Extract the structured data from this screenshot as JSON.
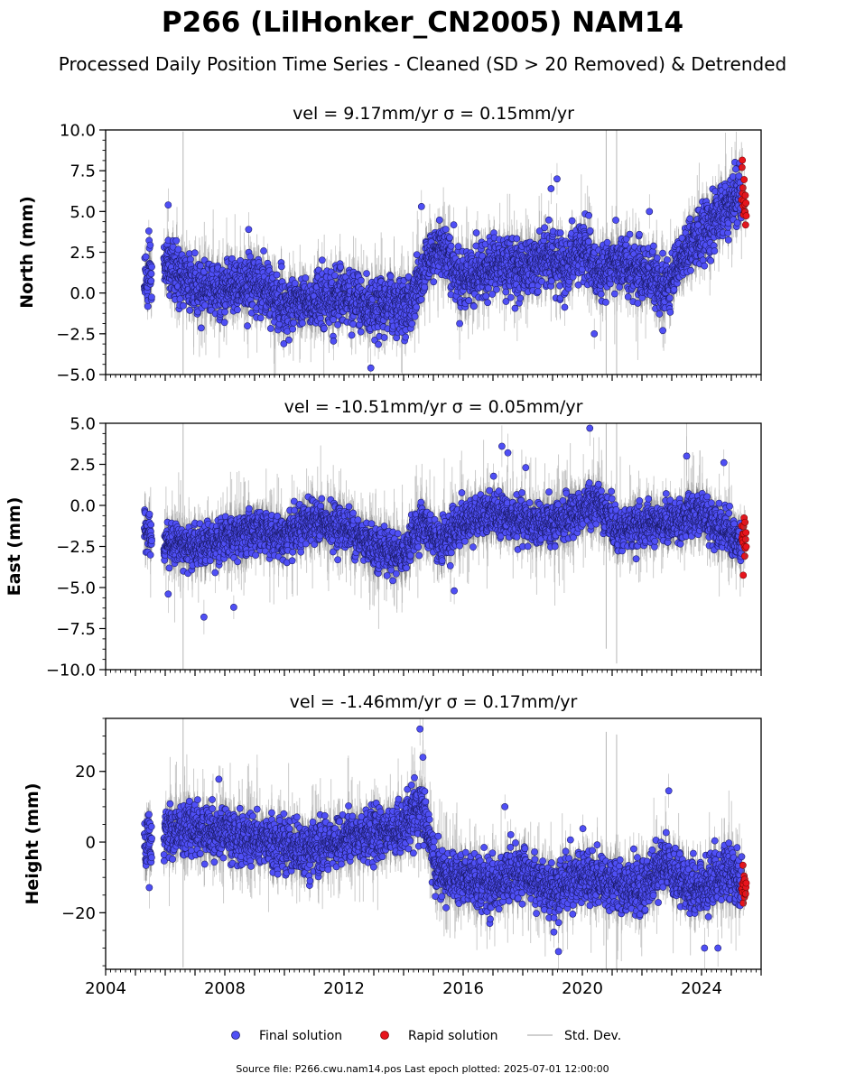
{
  "page": {
    "title": "P266 (LilHonker_CN2005) NAM14",
    "subtitle": "Processed Daily Position Time Series - Cleaned (SD > 20 Removed) & Detrended",
    "footer": "Source file: P266.cwu.nam14.pos  Last epoch plotted: 2025-07-01 12:00:00"
  },
  "legend": {
    "final": "Final solution",
    "rapid": "Rapid solution",
    "std": "Std. Dev."
  },
  "colors": {
    "final_fill": "#4f4ff5",
    "final_edge": "#1a1a66",
    "rapid_fill": "#e8141c",
    "rapid_edge": "#7a0000",
    "std_dev": "#b5b5b5",
    "std_dev_dense": "#5a5a5a"
  },
  "chart_data": [
    {
      "type": "scatter",
      "title": "vel = 9.17mm/yr   σ = 0.15mm/yr",
      "ylabel": "North (mm)",
      "xlim": [
        2004,
        2026
      ],
      "ylim": [
        -5,
        10
      ],
      "yticks": [
        -5,
        -2.5,
        0,
        2.5,
        5,
        7.5,
        10
      ],
      "ytick_labels": [
        "−5.0",
        "−2.5",
        "0.0",
        "2.5",
        "5.0",
        "7.5",
        "10.0"
      ],
      "data_start": 2005.3,
      "data_end": 2025.35,
      "rapid_start": 2025.35,
      "rapid_end": 2025.5,
      "series": [
        {
          "role": "final",
          "trend": [
            [
              2005.3,
              0.5
            ],
            [
              2006,
              1.8
            ],
            [
              2006.8,
              0.6
            ],
            [
              2008,
              0.2
            ],
            [
              2009,
              0.6
            ],
            [
              2010,
              -0.8
            ],
            [
              2011,
              -0.6
            ],
            [
              2012,
              0.0
            ],
            [
              2012.9,
              -1.2
            ],
            [
              2013.5,
              -0.6
            ],
            [
              2014.2,
              -0.8
            ],
            [
              2014.8,
              2.0
            ],
            [
              2015.3,
              3.0
            ],
            [
              2015.9,
              0.8
            ],
            [
              2016.5,
              1.2
            ],
            [
              2017.2,
              1.8
            ],
            [
              2018,
              1.5
            ],
            [
              2018.8,
              2.2
            ],
            [
              2019.4,
              1.5
            ],
            [
              2020,
              2.8
            ],
            [
              2020.5,
              1.2
            ],
            [
              2021,
              1.8
            ],
            [
              2021.8,
              1.4
            ],
            [
              2022.3,
              1.0
            ],
            [
              2022.8,
              0.3
            ],
            [
              2023.4,
              2.5
            ],
            [
              2024,
              3.5
            ],
            [
              2024.6,
              4.8
            ],
            [
              2025.35,
              6.2
            ]
          ],
          "noise": 1.3,
          "highlights": [
            [
              2005.45,
              3.8
            ],
            [
              2006.1,
              5.4
            ],
            [
              2008.8,
              3.9
            ],
            [
              2012.9,
              -4.6
            ],
            [
              2014.6,
              5.3
            ],
            [
              2018.95,
              6.4
            ],
            [
              2019.15,
              7.0
            ],
            [
              2020.4,
              -2.5
            ],
            [
              2022.25,
              5.0
            ],
            [
              2022.7,
              -2.3
            ],
            [
              2025.15,
              7.6
            ]
          ]
        },
        {
          "role": "rapid",
          "trend": [
            [
              2025.35,
              5.8
            ],
            [
              2025.5,
              5.5
            ]
          ],
          "noise": 1.0
        }
      ]
    },
    {
      "type": "scatter",
      "title": "vel = -10.51mm/yr   σ = 0.05mm/yr",
      "ylabel": "East (mm)",
      "xlim": [
        2004,
        2026
      ],
      "ylim": [
        -10,
        5
      ],
      "yticks": [
        -10,
        -7.5,
        -5,
        -2.5,
        0,
        2.5,
        5
      ],
      "ytick_labels": [
        "−10.0",
        "−7.5",
        "−5.0",
        "−2.5",
        "0.0",
        "2.5",
        "5.0"
      ],
      "data_start": 2005.3,
      "data_end": 2025.35,
      "rapid_start": 2025.35,
      "rapid_end": 2025.5,
      "series": [
        {
          "role": "final",
          "trend": [
            [
              2005.3,
              -1.5
            ],
            [
              2006,
              -2.2
            ],
            [
              2007,
              -2.5
            ],
            [
              2008,
              -2.0
            ],
            [
              2009,
              -1.5
            ],
            [
              2010,
              -2.0
            ],
            [
              2011,
              -1.0
            ],
            [
              2012,
              -1.3
            ],
            [
              2013,
              -2.5
            ],
            [
              2014,
              -3.0
            ],
            [
              2014.6,
              -1.0
            ],
            [
              2015.2,
              -2.3
            ],
            [
              2016,
              -1.0
            ],
            [
              2017,
              -0.5
            ],
            [
              2018,
              -1.0
            ],
            [
              2019,
              -1.2
            ],
            [
              2020,
              -0.3
            ],
            [
              2020.5,
              0.3
            ],
            [
              2021.2,
              -1.5
            ],
            [
              2022,
              -1.2
            ],
            [
              2023,
              -1.0
            ],
            [
              2024,
              -0.5
            ],
            [
              2024.8,
              -1.5
            ],
            [
              2025.35,
              -2.5
            ]
          ],
          "noise": 0.95,
          "highlights": [
            [
              2006.1,
              -5.4
            ],
            [
              2007.3,
              -6.8
            ],
            [
              2008.3,
              -6.2
            ],
            [
              2015.7,
              -5.2
            ],
            [
              2017.3,
              3.6
            ],
            [
              2017.5,
              3.2
            ],
            [
              2018.1,
              2.3
            ],
            [
              2020.25,
              4.7
            ],
            [
              2023.5,
              3.0
            ],
            [
              2024.75,
              2.6
            ]
          ]
        },
        {
          "role": "rapid",
          "trend": [
            [
              2025.35,
              -2.0
            ],
            [
              2025.5,
              -2.4
            ]
          ],
          "noise": 0.8
        }
      ]
    },
    {
      "type": "scatter",
      "title": "vel = -1.46mm/yr   σ = 0.17mm/yr",
      "ylabel": "Height (mm)",
      "xlabel_ticks": [
        "2004",
        "2008",
        "2012",
        "2016",
        "2020",
        "2024"
      ],
      "xticks": [
        2004,
        2008,
        2012,
        2016,
        2020,
        2024
      ],
      "xlim": [
        2004,
        2026
      ],
      "ylim": [
        -36,
        35
      ],
      "yticks": [
        -20,
        0,
        20
      ],
      "ytick_labels": [
        "−20",
        "0",
        "20"
      ],
      "data_start": 2005.3,
      "data_end": 2025.35,
      "rapid_start": 2025.35,
      "rapid_end": 2025.5,
      "series": [
        {
          "role": "final",
          "trend": [
            [
              2005.3,
              0
            ],
            [
              2006,
              3
            ],
            [
              2007,
              4
            ],
            [
              2008,
              2
            ],
            [
              2009,
              1
            ],
            [
              2010,
              -1
            ],
            [
              2011,
              -2
            ],
            [
              2012,
              1
            ],
            [
              2013,
              2
            ],
            [
              2014,
              4
            ],
            [
              2014.6,
              10
            ],
            [
              2015.1,
              -8
            ],
            [
              2016,
              -10
            ],
            [
              2017,
              -12
            ],
            [
              2018,
              -9
            ],
            [
              2019,
              -14
            ],
            [
              2020,
              -9
            ],
            [
              2021,
              -12
            ],
            [
              2022,
              -13
            ],
            [
              2022.8,
              -6
            ],
            [
              2023.5,
              -12
            ],
            [
              2024,
              -13
            ],
            [
              2024.8,
              -8
            ],
            [
              2025.35,
              -12
            ]
          ],
          "noise": 5.5,
          "highlights": [
            [
              2014.55,
              32
            ],
            [
              2014.65,
              24
            ],
            [
              2017.4,
              10
            ],
            [
              2019.2,
              -31
            ],
            [
              2022.9,
              14.5
            ],
            [
              2024.1,
              -30
            ],
            [
              2024.55,
              -30
            ],
            [
              2007.8,
              17.8
            ]
          ]
        },
        {
          "role": "rapid",
          "trend": [
            [
              2025.35,
              -13
            ],
            [
              2025.5,
              -15
            ]
          ],
          "noise": 3.5
        }
      ]
    }
  ]
}
